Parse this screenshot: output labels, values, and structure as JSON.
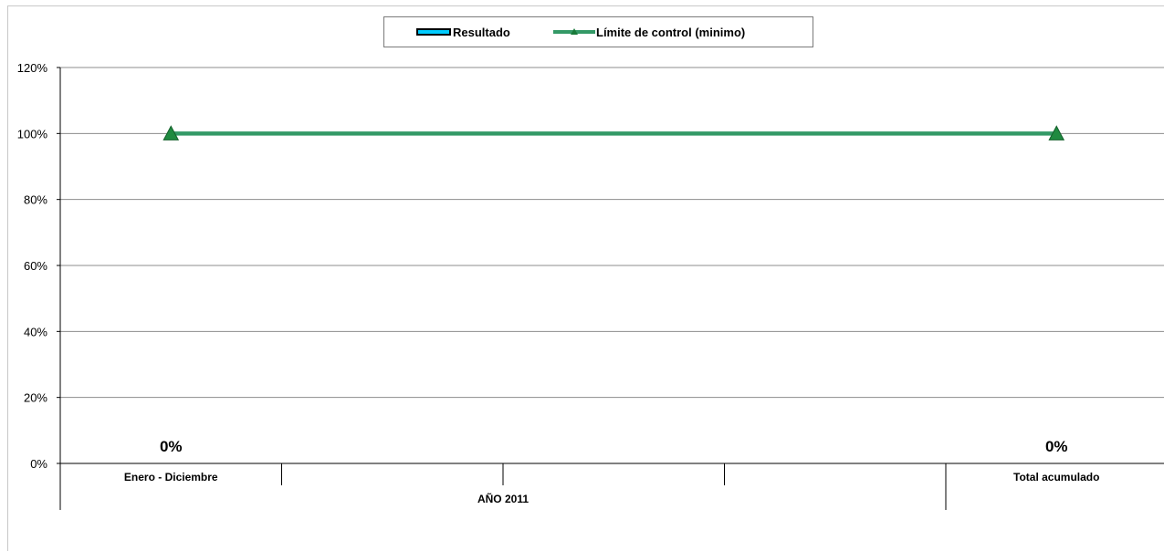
{
  "legend": {
    "items": [
      {
        "label": "Resultado",
        "color": "#00ccff",
        "kind": "bar"
      },
      {
        "label": "Límite de control (minimo)",
        "color": "#339966",
        "kind": "line-triangle"
      }
    ]
  },
  "chart_data": {
    "type": "bar",
    "categories": [
      "Enero - Diciembre",
      "Total acumulado"
    ],
    "category_group_label": "AÑO 2011",
    "series": [
      {
        "name": "Resultado",
        "type": "bar",
        "values": [
          0,
          0
        ],
        "data_labels": [
          "0%",
          "0%"
        ],
        "color": "#00ccff"
      },
      {
        "name": "Límite de control (minimo)",
        "type": "line",
        "marker": "triangle",
        "values": [
          1.0,
          1.0
        ],
        "color": "#339966"
      }
    ],
    "y_ticks": [
      "0%",
      "20%",
      "40%",
      "60%",
      "80%",
      "100%",
      "120%"
    ],
    "ylim": [
      0,
      1.2
    ],
    "grid": true,
    "legend_position": "top"
  }
}
